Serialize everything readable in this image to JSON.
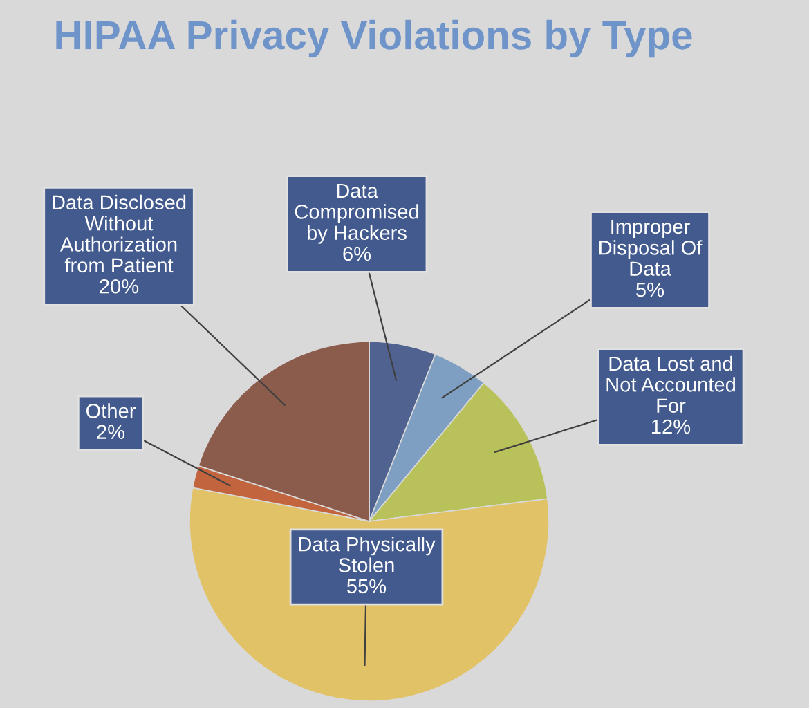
{
  "chart_data": {
    "type": "pie",
    "title": "HIPAA Privacy Violations by Type",
    "categories": [
      "Data\nCompromised\nby Hackers",
      "Improper\nDisposal Of\nData",
      "Data Lost and\nNot Accounted\nFor",
      "Data Physically\nStolen",
      "Other",
      "Data Disclosed\nWithout\nAuthorization\nfrom Patient"
    ],
    "values": [
      6,
      5,
      12,
      55,
      2,
      20
    ],
    "value_labels": [
      "6%",
      "5%",
      "12%",
      "55%",
      "2%",
      "20%"
    ],
    "colors": [
      "#50628f",
      "#7f9fc2",
      "#b9c25a",
      "#e1c266",
      "#c2643e",
      "#8b5c4c"
    ],
    "legend": false
  }
}
